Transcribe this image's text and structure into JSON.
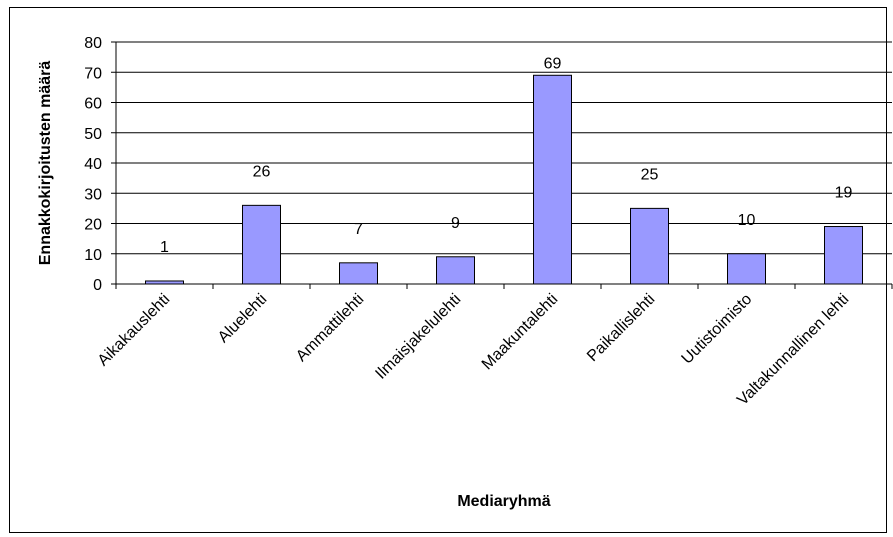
{
  "chart_data": {
    "type": "bar",
    "title": "",
    "xlabel": "Mediaryhmä",
    "ylabel": "Ennakkokirjoitusten määrä",
    "categories": [
      "Aikakauslehti",
      "Aluelehti",
      "Ammattilehti",
      "Ilmaisjakelulehti",
      "Maakuntalehti",
      "Paikallislehti",
      "Uutistoimisto",
      "Valtakunnallinen lehti"
    ],
    "values": [
      1,
      26,
      7,
      9,
      69,
      25,
      10,
      19
    ],
    "ylim": [
      0,
      80
    ],
    "yticks": [
      0,
      10,
      20,
      30,
      40,
      50,
      60,
      70,
      80
    ],
    "grid": true,
    "legend": "none",
    "colors": {
      "bar_fill": "#9999ff",
      "bar_stroke": "#000000",
      "grid": "#000000"
    }
  }
}
